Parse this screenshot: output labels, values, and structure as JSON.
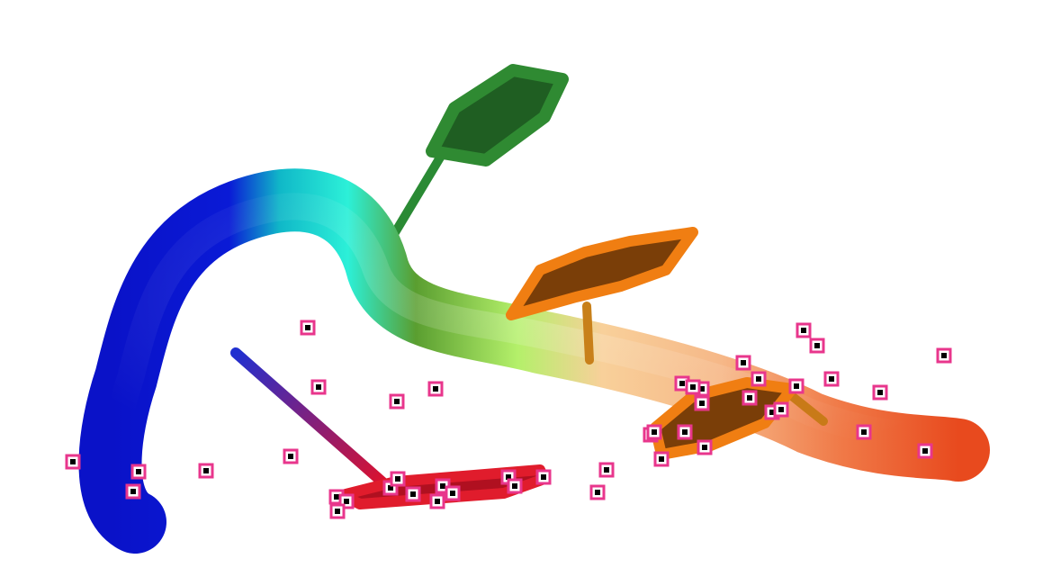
{
  "scene": {
    "description_colors": {
      "background": "#ffffff",
      "marker_stroke": "#e8368c",
      "marker_center": "#000000",
      "tube_gradient": [
        "#0a0fc8",
        "#0a18d8",
        "#00c8c0",
        "#1de8d8",
        "#3a9a2a",
        "#a6e85a",
        "#c8f070",
        "#f7c08a",
        "#f4a070",
        "#f06a3a",
        "#e8481c"
      ],
      "green_ring": "#1f6a24",
      "orange_ring": "#e87a12",
      "red_ring": "#e01c2c"
    },
    "markers_count": 55
  }
}
